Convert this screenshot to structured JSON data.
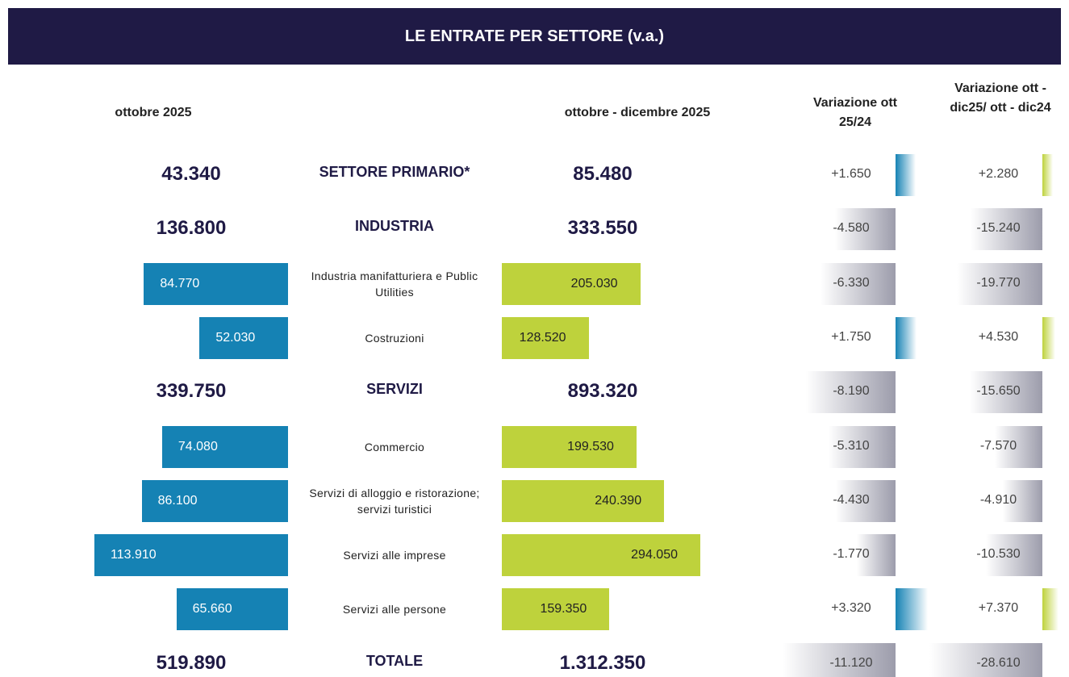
{
  "title": "LE ENTRATE PER SETTORE (v.a.)",
  "columns": {
    "month": "ottobre 2025",
    "quarter": "ottobre  - dicembre 2025",
    "var_month": "Variazione ott 25/24",
    "var_quarter": "Variazione ott - dic25/ ott - dic24"
  },
  "rows": [
    {
      "label": "SETTORE PRIMARIO*",
      "month": {
        "value": 43340,
        "label": "43.340"
      },
      "quarter": {
        "value": 85480,
        "label": "85.480"
      },
      "var_month": {
        "value": 1650,
        "label": "+1.650"
      },
      "var_quarter": {
        "value": 2280,
        "label": "+2.280"
      }
    },
    {
      "label": "INDUSTRIA",
      "month": {
        "value": 136800,
        "label": "136.800"
      },
      "quarter": {
        "value": 333550,
        "label": "333.550"
      },
      "var_month": {
        "value": -4580,
        "label": "-4.580"
      },
      "var_quarter": {
        "value": -15240,
        "label": "-15.240"
      },
      "sub": [
        {
          "label": "Industria manifatturiera e Public Utilities",
          "month": {
            "value": 84770,
            "label": "84.770"
          },
          "quarter": {
            "value": 205030,
            "label": "205.030"
          },
          "var_month": {
            "value": -6330,
            "label": "-6.330"
          },
          "var_quarter": {
            "value": -19770,
            "label": "-19.770"
          }
        },
        {
          "label": "Costruzioni",
          "month": {
            "value": 52030,
            "label": "52.030"
          },
          "quarter": {
            "value": 128520,
            "label": "128.520"
          },
          "var_month": {
            "value": 1750,
            "label": "+1.750"
          },
          "var_quarter": {
            "value": 4530,
            "label": "+4.530"
          }
        }
      ]
    },
    {
      "label": "SERVIZI",
      "month": {
        "value": 339750,
        "label": "339.750"
      },
      "quarter": {
        "value": 893320,
        "label": "893.320"
      },
      "var_month": {
        "value": -8190,
        "label": "-8.190"
      },
      "var_quarter": {
        "value": -15650,
        "label": "-15.650"
      },
      "sub": [
        {
          "label": "Commercio",
          "month": {
            "value": 74080,
            "label": "74.080"
          },
          "quarter": {
            "value": 199530,
            "label": "199.530"
          },
          "var_month": {
            "value": -5310,
            "label": "-5.310"
          },
          "var_quarter": {
            "value": -7570,
            "label": "-7.570"
          }
        },
        {
          "label": "Servizi di alloggio e ristorazione; servizi turistici",
          "month": {
            "value": 86100,
            "label": "86.100"
          },
          "quarter": {
            "value": 240390,
            "label": "240.390"
          },
          "var_month": {
            "value": -4430,
            "label": "-4.430"
          },
          "var_quarter": {
            "value": -4910,
            "label": "-4.910"
          }
        },
        {
          "label": "Servizi alle imprese",
          "month": {
            "value": 113910,
            "label": "113.910"
          },
          "quarter": {
            "value": 294050,
            "label": "294.050"
          },
          "var_month": {
            "value": -1770,
            "label": "-1.770"
          },
          "var_quarter": {
            "value": -10530,
            "label": "-10.530"
          }
        },
        {
          "label": "Servizi alle persone",
          "month": {
            "value": 65660,
            "label": "65.660"
          },
          "quarter": {
            "value": 159350,
            "label": "159.350"
          },
          "var_month": {
            "value": 3320,
            "label": "+3.320"
          },
          "var_quarter": {
            "value": 7370,
            "label": "+7.370"
          }
        }
      ]
    },
    {
      "label": "TOTALE",
      "month": {
        "value": 519890,
        "label": "519.890"
      },
      "quarter": {
        "value": 1312350,
        "label": "1.312.350"
      },
      "var_month": {
        "value": -11120,
        "label": "-11.120"
      },
      "var_quarter": {
        "value": -28610,
        "label": "-28.610"
      }
    }
  ]
}
